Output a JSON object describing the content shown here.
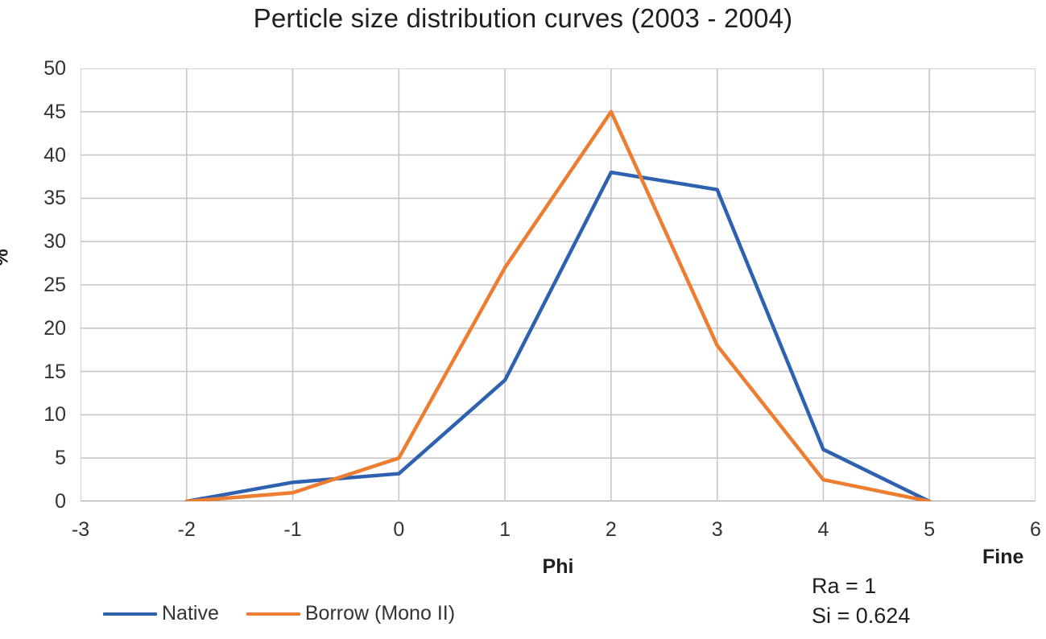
{
  "title": "Perticle size distribution curves (2003 - 2004)",
  "chart_data": {
    "type": "line",
    "x": [
      -2,
      -1,
      0,
      1,
      2,
      3,
      4,
      5
    ],
    "series": [
      {
        "name": "Native",
        "color": "#2e62b1",
        "values": [
          0,
          2.2,
          3.2,
          14,
          38,
          36,
          6,
          0
        ]
      },
      {
        "name": "Borrow (Mono II)",
        "color": "#ed7d31",
        "values": [
          0,
          1,
          5,
          27,
          45,
          18,
          2.5,
          0
        ]
      }
    ],
    "title": "Perticle size distribution curves (2003 - 2004)",
    "xlabel": "Phi",
    "ylabel": "%",
    "xlim": [
      -3,
      6
    ],
    "ylim": [
      0,
      50
    ],
    "x_ticks": [
      "-3",
      "-2",
      "-1",
      "0",
      "1",
      "2",
      "3",
      "4",
      "5",
      "6"
    ],
    "y_ticks": [
      "0",
      "5",
      "10",
      "15",
      "20",
      "25",
      "30",
      "35",
      "40",
      "45",
      "50"
    ],
    "grid": true,
    "legend_position": "bottom-left"
  },
  "annotations": {
    "fine": "Fine",
    "ra": "Ra = 1",
    "si": "Si = 0.624"
  },
  "colors": {
    "native_line": "#2e62b1",
    "borrow_line": "#ed7d31",
    "gridline": "#c6c6c6",
    "bottom_axis": "#9e9e9e",
    "text": "#1f1f1f"
  }
}
